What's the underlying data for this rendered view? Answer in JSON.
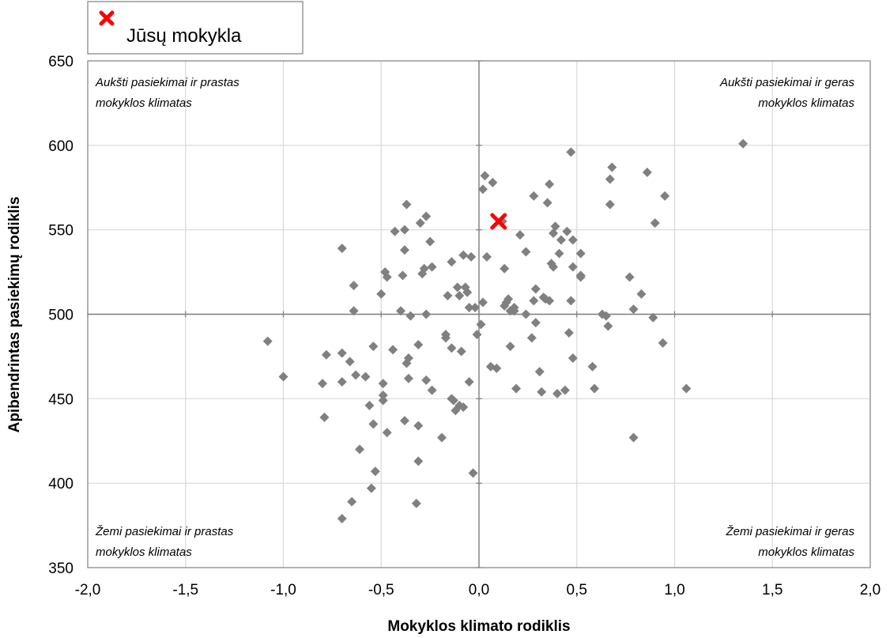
{
  "chart_data": {
    "type": "scatter",
    "xlabel": "Mokyklos klimato rodiklis",
    "ylabel": "Apibendrintas pasiekimų rodiklis",
    "xlim": [
      -2.0,
      2.0
    ],
    "ylim": [
      350,
      650
    ],
    "x_ticks": [
      "-2,0",
      "-1,5",
      "-1,0",
      "-0,5",
      "0,0",
      "0,5",
      "1,0",
      "1,5",
      "2,0"
    ],
    "y_ticks": [
      "350",
      "400",
      "450",
      "500",
      "550",
      "600",
      "650"
    ],
    "grid": true,
    "reference_lines": {
      "x": 0,
      "y": 500
    },
    "legend": {
      "position": "top-left",
      "label": "Jūsų mokykla",
      "marker": "red-x-icon"
    },
    "quadrant_labels": {
      "top_left": [
        "Aukšti pasiekimai ir prastas",
        "mokyklos klimatas"
      ],
      "top_right": [
        "Aukšti pasiekimai ir geras",
        "mokyklos klimatas"
      ],
      "bottom_left": [
        "Žemi pasiekimai ir prastas",
        "mokyklos klimatas"
      ],
      "bottom_right": [
        "Žemi pasiekimai ir geras",
        "mokyklos klimatas"
      ]
    },
    "colors": {
      "points": "#808080",
      "highlight": "#ff0000",
      "grid": "#d9d9d9",
      "reference": "#7f7f7f"
    },
    "highlight_point": {
      "x": 0.1,
      "y": 555
    },
    "points": [
      [
        -1.08,
        484
      ],
      [
        -1.0,
        463
      ],
      [
        -0.8,
        459
      ],
      [
        -0.79,
        439
      ],
      [
        -0.78,
        476
      ],
      [
        -0.7,
        539
      ],
      [
        -0.7,
        477
      ],
      [
        -0.7,
        460
      ],
      [
        -0.7,
        379
      ],
      [
        -0.66,
        472
      ],
      [
        -0.65,
        389
      ],
      [
        -0.64,
        517
      ],
      [
        -0.64,
        502
      ],
      [
        -0.63,
        464
      ],
      [
        -0.61,
        420
      ],
      [
        -0.58,
        463
      ],
      [
        -0.56,
        446
      ],
      [
        -0.55,
        397
      ],
      [
        -0.54,
        481
      ],
      [
        -0.54,
        435
      ],
      [
        -0.53,
        407
      ],
      [
        -0.5,
        512
      ],
      [
        -0.49,
        452
      ],
      [
        -0.49,
        449
      ],
      [
        -0.49,
        459
      ],
      [
        -0.48,
        525
      ],
      [
        -0.47,
        522
      ],
      [
        -0.47,
        430
      ],
      [
        -0.44,
        479
      ],
      [
        -0.43,
        549
      ],
      [
        -0.4,
        502
      ],
      [
        -0.39,
        523
      ],
      [
        -0.38,
        550
      ],
      [
        -0.38,
        538
      ],
      [
        -0.38,
        437
      ],
      [
        -0.37,
        565
      ],
      [
        -0.37,
        471
      ],
      [
        -0.36,
        462
      ],
      [
        -0.36,
        474
      ],
      [
        -0.35,
        499
      ],
      [
        -0.32,
        388
      ],
      [
        -0.31,
        482
      ],
      [
        -0.31,
        413
      ],
      [
        -0.31,
        434
      ],
      [
        -0.3,
        554
      ],
      [
        -0.29,
        524
      ],
      [
        -0.28,
        527
      ],
      [
        -0.27,
        558
      ],
      [
        -0.27,
        500
      ],
      [
        -0.27,
        461
      ],
      [
        -0.25,
        543
      ],
      [
        -0.24,
        528
      ],
      [
        -0.24,
        455
      ],
      [
        -0.19,
        427
      ],
      [
        -0.17,
        486
      ],
      [
        -0.17,
        488
      ],
      [
        -0.16,
        511
      ],
      [
        -0.14,
        531
      ],
      [
        -0.14,
        480
      ],
      [
        -0.14,
        450
      ],
      [
        -0.13,
        449
      ],
      [
        -0.12,
        443
      ],
      [
        -0.11,
        516
      ],
      [
        -0.1,
        511
      ],
      [
        -0.1,
        446
      ],
      [
        -0.09,
        478
      ],
      [
        -0.08,
        535
      ],
      [
        -0.08,
        445
      ],
      [
        -0.07,
        516
      ],
      [
        -0.06,
        513
      ],
      [
        -0.05,
        504
      ],
      [
        -0.05,
        460
      ],
      [
        -0.04,
        534
      ],
      [
        -0.03,
        406
      ],
      [
        -0.02,
        504
      ],
      [
        -0.01,
        488
      ],
      [
        0.01,
        494
      ],
      [
        0.02,
        574
      ],
      [
        0.02,
        507
      ],
      [
        0.03,
        582
      ],
      [
        0.04,
        534
      ],
      [
        0.06,
        469
      ],
      [
        0.07,
        578
      ],
      [
        0.09,
        468
      ],
      [
        0.12,
        555
      ],
      [
        0.13,
        527
      ],
      [
        0.13,
        505
      ],
      [
        0.14,
        507
      ],
      [
        0.15,
        509
      ],
      [
        0.16,
        481
      ],
      [
        0.16,
        502
      ],
      [
        0.18,
        502
      ],
      [
        0.18,
        504
      ],
      [
        0.19,
        456
      ],
      [
        0.21,
        547
      ],
      [
        0.24,
        537
      ],
      [
        0.24,
        500
      ],
      [
        0.27,
        486
      ],
      [
        0.28,
        508
      ],
      [
        0.28,
        570
      ],
      [
        0.29,
        515
      ],
      [
        0.29,
        495
      ],
      [
        0.31,
        466
      ],
      [
        0.32,
        454
      ],
      [
        0.33,
        510
      ],
      [
        0.34,
        509
      ],
      [
        0.35,
        566
      ],
      [
        0.36,
        577
      ],
      [
        0.36,
        508
      ],
      [
        0.37,
        530
      ],
      [
        0.38,
        528
      ],
      [
        0.38,
        548
      ],
      [
        0.39,
        552
      ],
      [
        0.4,
        453
      ],
      [
        0.41,
        536
      ],
      [
        0.42,
        544
      ],
      [
        0.44,
        455
      ],
      [
        0.45,
        549
      ],
      [
        0.46,
        489
      ],
      [
        0.47,
        596
      ],
      [
        0.47,
        508
      ],
      [
        0.48,
        544
      ],
      [
        0.48,
        528
      ],
      [
        0.48,
        474
      ],
      [
        0.52,
        536
      ],
      [
        0.52,
        523
      ],
      [
        0.52,
        522
      ],
      [
        0.58,
        469
      ],
      [
        0.59,
        456
      ],
      [
        0.63,
        500
      ],
      [
        0.65,
        499
      ],
      [
        0.66,
        493
      ],
      [
        0.67,
        565
      ],
      [
        0.67,
        580
      ],
      [
        0.68,
        587
      ],
      [
        0.77,
        522
      ],
      [
        0.79,
        427
      ],
      [
        0.79,
        503
      ],
      [
        0.83,
        512
      ],
      [
        0.86,
        584
      ],
      [
        0.89,
        498
      ],
      [
        0.9,
        554
      ],
      [
        0.94,
        483
      ],
      [
        0.95,
        570
      ],
      [
        1.06,
        456
      ],
      [
        1.35,
        601
      ]
    ]
  }
}
